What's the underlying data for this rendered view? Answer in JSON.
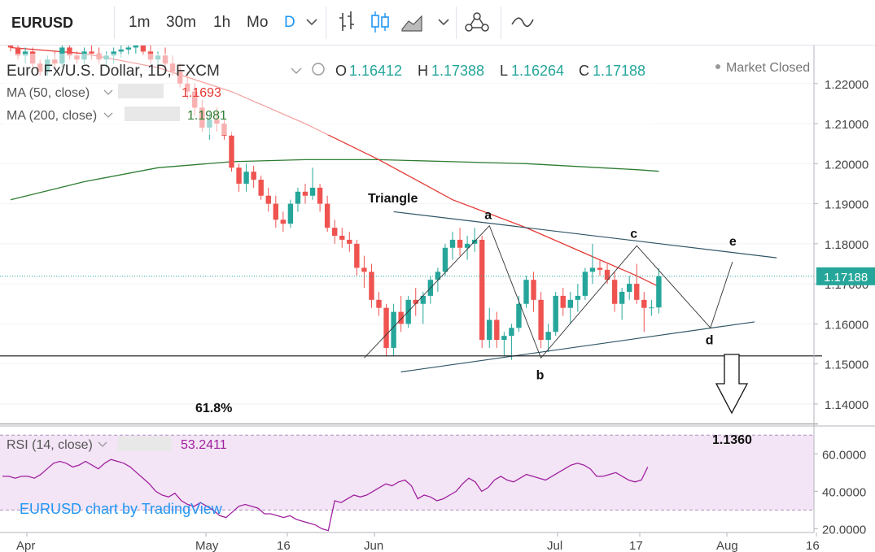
{
  "toolbar": {
    "symbol": "EURUSD",
    "intervals": [
      "1m",
      "30m",
      "1h",
      "Mo",
      "D"
    ],
    "icons": [
      "chevron-down-icon",
      "bar-style-icon",
      "candles-icon",
      "area-chart-icon",
      "chevron-down-icon",
      "indicators-icon",
      "compare-icon"
    ]
  },
  "legend": {
    "title": "Euro Fx/U.S. Dollar, 1D, FXCM",
    "open_label": "O",
    "open": "1.16412",
    "high_label": "H",
    "high": "1.17388",
    "low_label": "L",
    "low": "1.16264",
    "close_label": "C",
    "close": "1.17188",
    "status": "Market Closed",
    "ma50_label": "MA (50, close)",
    "ma50_value": "1.1693",
    "ma200_label": "MA (200, close)",
    "ma200_value": "1.1981",
    "rsi_label": "RSI (14, close)",
    "rsi_value": "53.2411"
  },
  "annotations": {
    "triangle": "Triangle",
    "points": [
      "a",
      "b",
      "c",
      "d",
      "e"
    ],
    "fib": "61.8%",
    "target": "1.1360",
    "watermark": "EURUSD chart by TradingView"
  },
  "colors": {
    "up": "#26a69a",
    "down": "#ef5350",
    "ma50": "#e53935",
    "ma200": "#2e7d32",
    "rsi": "#a020a0",
    "rsi_band": "#f3e5f5",
    "price_tag": "#26a69a"
  },
  "chart_data": [
    {
      "type": "candlestick",
      "title": "EURUSD",
      "price_axis": {
        "ylim": [
          1.1345,
          1.2295
        ],
        "ticks": [
          "1.22000",
          "1.21000",
          "1.20000",
          "1.19000",
          "1.18000",
          "1.17000",
          "1.16000",
          "1.15000",
          "1.14000"
        ]
      },
      "last_price": "1.17188",
      "time_axis": [
        "Apr",
        "May",
        "16",
        "Jun",
        "Jul",
        "17",
        "Aug",
        "16"
      ],
      "candles": [
        [
          1.23,
          1.2315,
          1.228,
          1.229
        ],
        [
          1.229,
          1.23,
          1.226,
          1.227
        ],
        [
          1.227,
          1.229,
          1.225,
          1.228
        ],
        [
          1.228,
          1.229,
          1.224,
          1.225
        ],
        [
          1.225,
          1.226,
          1.222,
          1.223
        ],
        [
          1.223,
          1.227,
          1.222,
          1.226
        ],
        [
          1.226,
          1.228,
          1.224,
          1.225
        ],
        [
          1.225,
          1.23,
          1.224,
          1.229
        ],
        [
          1.229,
          1.23,
          1.226,
          1.227
        ],
        [
          1.227,
          1.228,
          1.225,
          1.226
        ],
        [
          1.226,
          1.229,
          1.225,
          1.228
        ],
        [
          1.228,
          1.23,
          1.226,
          1.2275
        ],
        [
          1.2275,
          1.229,
          1.225,
          1.226
        ],
        [
          1.226,
          1.228,
          1.224,
          1.227
        ],
        [
          1.227,
          1.229,
          1.225,
          1.228
        ],
        [
          1.228,
          1.23,
          1.2265,
          1.2285
        ],
        [
          1.2285,
          1.23,
          1.227,
          1.229
        ],
        [
          1.229,
          1.2305,
          1.2275,
          1.23
        ],
        [
          1.23,
          1.231,
          1.227,
          1.228
        ],
        [
          1.228,
          1.2295,
          1.225,
          1.226
        ],
        [
          1.226,
          1.228,
          1.223,
          1.227
        ],
        [
          1.227,
          1.229,
          1.224,
          1.225
        ],
        [
          1.225,
          1.227,
          1.222,
          1.223
        ],
        [
          1.223,
          1.225,
          1.219,
          1.22
        ],
        [
          1.22,
          1.223,
          1.216,
          1.218
        ],
        [
          1.218,
          1.22,
          1.212,
          1.214
        ],
        [
          1.214,
          1.216,
          1.208,
          1.209
        ],
        [
          1.209,
          1.213,
          1.206,
          1.211
        ],
        [
          1.211,
          1.214,
          1.208,
          1.21
        ],
        [
          1.21,
          1.211,
          1.206,
          1.207
        ],
        [
          1.207,
          1.208,
          1.198,
          1.199
        ],
        [
          1.199,
          1.2,
          1.193,
          1.195
        ],
        [
          1.195,
          1.2,
          1.193,
          1.198
        ],
        [
          1.198,
          1.1995,
          1.194,
          1.196
        ],
        [
          1.196,
          1.197,
          1.191,
          1.192
        ],
        [
          1.192,
          1.194,
          1.188,
          1.19
        ],
        [
          1.19,
          1.192,
          1.184,
          1.186
        ],
        [
          1.186,
          1.188,
          1.183,
          1.185
        ],
        [
          1.185,
          1.191,
          1.184,
          1.19
        ],
        [
          1.19,
          1.194,
          1.188,
          1.193
        ],
        [
          1.193,
          1.195,
          1.19,
          1.192
        ],
        [
          1.192,
          1.199,
          1.191,
          1.194
        ],
        [
          1.194,
          1.195,
          1.188,
          1.19
        ],
        [
          1.19,
          1.192,
          1.183,
          1.184
        ],
        [
          1.184,
          1.186,
          1.18,
          1.182
        ],
        [
          1.182,
          1.184,
          1.179,
          1.181
        ],
        [
          1.181,
          1.183,
          1.178,
          1.18
        ],
        [
          1.18,
          1.181,
          1.172,
          1.174
        ],
        [
          1.174,
          1.177,
          1.169,
          1.173
        ],
        [
          1.173,
          1.175,
          1.164,
          1.166
        ],
        [
          1.166,
          1.168,
          1.162,
          1.164
        ],
        [
          1.164,
          1.165,
          1.152,
          1.154
        ],
        [
          1.154,
          1.165,
          1.152,
          1.163
        ],
        [
          1.163,
          1.167,
          1.158,
          1.16
        ],
        [
          1.16,
          1.167,
          1.159,
          1.166
        ],
        [
          1.166,
          1.169,
          1.162,
          1.165
        ],
        [
          1.165,
          1.168,
          1.16,
          1.167
        ],
        [
          1.167,
          1.172,
          1.165,
          1.171
        ],
        [
          1.171,
          1.174,
          1.168,
          1.173
        ],
        [
          1.173,
          1.18,
          1.172,
          1.179
        ],
        [
          1.179,
          1.183,
          1.176,
          1.181
        ],
        [
          1.181,
          1.184,
          1.177,
          1.179
        ],
        [
          1.179,
          1.182,
          1.176,
          1.18
        ],
        [
          1.18,
          1.184,
          1.178,
          1.181
        ],
        [
          1.181,
          1.182,
          1.154,
          1.156
        ],
        [
          1.156,
          1.164,
          1.154,
          1.161
        ],
        [
          1.161,
          1.163,
          1.154,
          1.156
        ],
        [
          1.156,
          1.158,
          1.152,
          1.157
        ],
        [
          1.157,
          1.16,
          1.151,
          1.159
        ],
        [
          1.159,
          1.167,
          1.158,
          1.165
        ],
        [
          1.165,
          1.172,
          1.164,
          1.171
        ],
        [
          1.171,
          1.173,
          1.163,
          1.166
        ],
        [
          1.166,
          1.168,
          1.154,
          1.156
        ],
        [
          1.156,
          1.16,
          1.153,
          1.158
        ],
        [
          1.158,
          1.168,
          1.157,
          1.167
        ],
        [
          1.167,
          1.169,
          1.162,
          1.164
        ],
        [
          1.164,
          1.168,
          1.16,
          1.166
        ],
        [
          1.166,
          1.17,
          1.163,
          1.167
        ],
        [
          1.167,
          1.174,
          1.166,
          1.173
        ],
        [
          1.173,
          1.18,
          1.17,
          1.174
        ],
        [
          1.174,
          1.176,
          1.172,
          1.1735
        ],
        [
          1.1735,
          1.175,
          1.17,
          1.171
        ],
        [
          1.171,
          1.173,
          1.163,
          1.165
        ],
        [
          1.165,
          1.169,
          1.161,
          1.168
        ],
        [
          1.168,
          1.172,
          1.166,
          1.17
        ],
        [
          1.17,
          1.175,
          1.165,
          1.166
        ],
        [
          1.166,
          1.168,
          1.158,
          1.164
        ],
        [
          1.164,
          1.166,
          1.162,
          1.1641
        ],
        [
          1.1641,
          1.1739,
          1.1626,
          1.1719
        ]
      ],
      "ma50": [
        [
          0,
          1.229
        ],
        [
          10,
          1.2275
        ],
        [
          20,
          1.224
        ],
        [
          30,
          1.218
        ],
        [
          40,
          1.21
        ],
        [
          50,
          1.201
        ],
        [
          60,
          1.191
        ],
        [
          70,
          1.184
        ],
        [
          75,
          1.18
        ],
        [
          80,
          1.176
        ],
        [
          85,
          1.172
        ],
        [
          88,
          1.1693
        ]
      ],
      "ma200": [
        [
          0,
          1.191
        ],
        [
          10,
          1.1955
        ],
        [
          20,
          1.199
        ],
        [
          30,
          1.2005
        ],
        [
          40,
          1.201
        ],
        [
          50,
          1.201
        ],
        [
          60,
          1.2005
        ],
        [
          70,
          1.2
        ],
        [
          75,
          1.1995
        ],
        [
          80,
          1.199
        ],
        [
          85,
          1.1985
        ],
        [
          88,
          1.1981
        ]
      ],
      "pattern": [
        {
          "point": "a",
          "x": 65,
          "y": 1.1845
        },
        {
          "point": "b",
          "x": 72,
          "y": 1.1515
        },
        {
          "point": "c",
          "x": 85,
          "y": 1.1795
        },
        {
          "point": "d",
          "x": 95,
          "y": 1.159
        },
        {
          "point": "e",
          "x": 98,
          "y": 1.1755
        }
      ],
      "triangle_upper": [
        [
          52,
          1.188
        ],
        [
          104,
          1.1765
        ]
      ],
      "triangle_lower": [
        [
          53,
          1.148
        ],
        [
          101,
          1.1605
        ]
      ],
      "support": 1.152,
      "fib_618": 1.135,
      "target": 1.136
    },
    {
      "type": "line",
      "title": "RSI (14, close)",
      "ylim": [
        18,
        71
      ],
      "ticks": [
        "60.0000",
        "40.0000",
        "20.0000"
      ],
      "band": [
        30,
        70
      ],
      "values": [
        48,
        48,
        47,
        48,
        48,
        47,
        49,
        52,
        55,
        56,
        55,
        53,
        54,
        56,
        54,
        52,
        55,
        57,
        56,
        55,
        53,
        50,
        47,
        44,
        40,
        38,
        37,
        39,
        35,
        33,
        32,
        34,
        32,
        30,
        27,
        26,
        29,
        32,
        33,
        32,
        31,
        28,
        28,
        27,
        26,
        27,
        25,
        24,
        23,
        22,
        20,
        19,
        35,
        34,
        36,
        38,
        37,
        38,
        40,
        42,
        44,
        43,
        45,
        46,
        43,
        36,
        38,
        37,
        35,
        36,
        38,
        40,
        44,
        47,
        45,
        40,
        42,
        46,
        48,
        46,
        45,
        47,
        49,
        48,
        47,
        46,
        48,
        50,
        52,
        54,
        55,
        54,
        52,
        48,
        48,
        49,
        50,
        48,
        46,
        45,
        46,
        53
      ]
    }
  ]
}
